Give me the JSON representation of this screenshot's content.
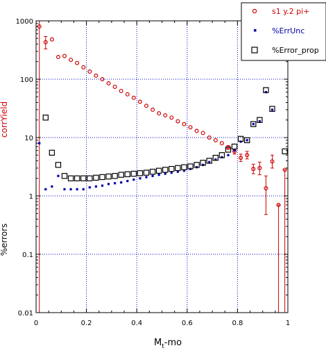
{
  "chart_data": {
    "type": "scatter",
    "xlabel": "M",
    "xlabel_sub": "t",
    "xlabel_suffix": "-mo",
    "ylabel_top": "corrYield",
    "ylabel_bottom": "%errors",
    "xlim": [
      0,
      1
    ],
    "ylim": [
      0.01,
      1000
    ],
    "yscale": "log",
    "grid": true,
    "legend_position": "top-right",
    "x_ticks": [
      {
        "value": 0,
        "label": "0"
      },
      {
        "value": 0.2,
        "label": "0.2"
      },
      {
        "value": 0.4,
        "label": "0.4"
      },
      {
        "value": 0.6,
        "label": "0.6"
      },
      {
        "value": 0.8,
        "label": "0.8"
      },
      {
        "value": 1,
        "label": "1"
      }
    ],
    "y_ticks": [
      {
        "value": 0.01,
        "label": "0.01"
      },
      {
        "value": 0.1,
        "label": "0.1"
      },
      {
        "value": 1,
        "label": "1"
      },
      {
        "value": 10,
        "label": "10"
      },
      {
        "value": 100,
        "label": "100"
      },
      {
        "value": 1000,
        "label": "1000"
      }
    ],
    "series": [
      {
        "name": "s1 y.2 pi+",
        "marker": "open-circle",
        "color": "#cc0000",
        "points": [
          {
            "x": 0.013,
            "y": 800,
            "lo": 0.01,
            "hi": 1000
          },
          {
            "x": 0.038,
            "y": 430,
            "lo": 330,
            "hi": 540
          },
          {
            "x": 0.063,
            "y": 480
          },
          {
            "x": 0.088,
            "y": 240
          },
          {
            "x": 0.113,
            "y": 250
          },
          {
            "x": 0.138,
            "y": 215
          },
          {
            "x": 0.163,
            "y": 190
          },
          {
            "x": 0.188,
            "y": 160
          },
          {
            "x": 0.213,
            "y": 135
          },
          {
            "x": 0.238,
            "y": 115
          },
          {
            "x": 0.263,
            "y": 100
          },
          {
            "x": 0.288,
            "y": 85
          },
          {
            "x": 0.313,
            "y": 74
          },
          {
            "x": 0.338,
            "y": 63
          },
          {
            "x": 0.363,
            "y": 55
          },
          {
            "x": 0.388,
            "y": 48
          },
          {
            "x": 0.413,
            "y": 41
          },
          {
            "x": 0.438,
            "y": 35
          },
          {
            "x": 0.463,
            "y": 30
          },
          {
            "x": 0.488,
            "y": 26
          },
          {
            "x": 0.513,
            "y": 24
          },
          {
            "x": 0.538,
            "y": 22
          },
          {
            "x": 0.563,
            "y": 19
          },
          {
            "x": 0.588,
            "y": 17
          },
          {
            "x": 0.613,
            "y": 15
          },
          {
            "x": 0.638,
            "y": 13
          },
          {
            "x": 0.663,
            "y": 12
          },
          {
            "x": 0.688,
            "y": 10
          },
          {
            "x": 0.713,
            "y": 9
          },
          {
            "x": 0.738,
            "y": 8
          },
          {
            "x": 0.763,
            "y": 6.8,
            "lo": 6.3,
            "hi": 7.3
          },
          {
            "x": 0.788,
            "y": 5.8,
            "lo": 5.2,
            "hi": 6.4
          },
          {
            "x": 0.813,
            "y": 4.5,
            "lo": 3.9,
            "hi": 5.2
          },
          {
            "x": 0.838,
            "y": 5.0,
            "lo": 4.3,
            "hi": 5.8
          },
          {
            "x": 0.863,
            "y": 2.9,
            "lo": 2.4,
            "hi": 3.5
          },
          {
            "x": 0.888,
            "y": 3.0,
            "lo": 2.3,
            "hi": 3.8
          },
          {
            "x": 0.913,
            "y": 1.35,
            "lo": 0.48,
            "hi": 2.2
          },
          {
            "x": 0.938,
            "y": 3.9,
            "lo": 3.0,
            "hi": 5.0
          },
          {
            "x": 0.963,
            "y": 0.7,
            "lo": 0.01,
            "hi": 0.7
          },
          {
            "x": 0.988,
            "y": 2.8,
            "lo": 0.01,
            "hi": 2.8
          }
        ]
      },
      {
        "name": "%ErrUnc",
        "marker": "filled-square",
        "color": "#0000aa",
        "points": [
          {
            "x": 0.013,
            "y": 8
          },
          {
            "x": 0.038,
            "y": 1.3
          },
          {
            "x": 0.063,
            "y": 1.45
          },
          {
            "x": 0.088,
            "y": 2.2
          },
          {
            "x": 0.113,
            "y": 1.3
          },
          {
            "x": 0.138,
            "y": 1.3
          },
          {
            "x": 0.163,
            "y": 1.3
          },
          {
            "x": 0.188,
            "y": 1.3
          },
          {
            "x": 0.213,
            "y": 1.4
          },
          {
            "x": 0.238,
            "y": 1.45
          },
          {
            "x": 0.263,
            "y": 1.5
          },
          {
            "x": 0.288,
            "y": 1.6
          },
          {
            "x": 0.313,
            "y": 1.65
          },
          {
            "x": 0.338,
            "y": 1.7
          },
          {
            "x": 0.363,
            "y": 1.8
          },
          {
            "x": 0.388,
            "y": 1.9
          },
          {
            "x": 0.413,
            "y": 2.0
          },
          {
            "x": 0.438,
            "y": 2.1
          },
          {
            "x": 0.463,
            "y": 2.2
          },
          {
            "x": 0.488,
            "y": 2.3
          },
          {
            "x": 0.513,
            "y": 2.4
          },
          {
            "x": 0.538,
            "y": 2.5
          },
          {
            "x": 0.563,
            "y": 2.6
          },
          {
            "x": 0.588,
            "y": 2.7
          },
          {
            "x": 0.613,
            "y": 2.9
          },
          {
            "x": 0.638,
            "y": 3.1
          },
          {
            "x": 0.663,
            "y": 3.4
          },
          {
            "x": 0.688,
            "y": 3.8
          },
          {
            "x": 0.713,
            "y": 4.2
          },
          {
            "x": 0.738,
            "y": 4.6
          },
          {
            "x": 0.763,
            "y": 5.0
          },
          {
            "x": 0.788,
            "y": 6.0
          },
          {
            "x": 0.813,
            "y": 8.5
          },
          {
            "x": 0.838,
            "y": 9.0
          },
          {
            "x": 0.863,
            "y": 17
          },
          {
            "x": 0.888,
            "y": 19
          },
          {
            "x": 0.913,
            "y": 60
          },
          {
            "x": 0.938,
            "y": 30
          }
        ]
      },
      {
        "name": "%Error_prop",
        "marker": "open-square",
        "color": "#000000",
        "points": [
          {
            "x": 0.038,
            "y": 22
          },
          {
            "x": 0.063,
            "y": 5.5
          },
          {
            "x": 0.088,
            "y": 3.4
          },
          {
            "x": 0.113,
            "y": 2.2
          },
          {
            "x": 0.138,
            "y": 2.0
          },
          {
            "x": 0.163,
            "y": 2.0
          },
          {
            "x": 0.188,
            "y": 2.0
          },
          {
            "x": 0.213,
            "y": 2.0
          },
          {
            "x": 0.238,
            "y": 2.05
          },
          {
            "x": 0.263,
            "y": 2.1
          },
          {
            "x": 0.288,
            "y": 2.15
          },
          {
            "x": 0.313,
            "y": 2.2
          },
          {
            "x": 0.338,
            "y": 2.3
          },
          {
            "x": 0.363,
            "y": 2.35
          },
          {
            "x": 0.388,
            "y": 2.4
          },
          {
            "x": 0.413,
            "y": 2.45
          },
          {
            "x": 0.438,
            "y": 2.5
          },
          {
            "x": 0.463,
            "y": 2.6
          },
          {
            "x": 0.488,
            "y": 2.7
          },
          {
            "x": 0.513,
            "y": 2.8
          },
          {
            "x": 0.538,
            "y": 2.9
          },
          {
            "x": 0.563,
            "y": 3.0
          },
          {
            "x": 0.588,
            "y": 3.1
          },
          {
            "x": 0.613,
            "y": 3.2
          },
          {
            "x": 0.638,
            "y": 3.4
          },
          {
            "x": 0.663,
            "y": 3.7
          },
          {
            "x": 0.688,
            "y": 4.0
          },
          {
            "x": 0.713,
            "y": 4.5
          },
          {
            "x": 0.738,
            "y": 5.0
          },
          {
            "x": 0.763,
            "y": 6.2
          },
          {
            "x": 0.788,
            "y": 7.0
          },
          {
            "x": 0.813,
            "y": 9.5
          },
          {
            "x": 0.838,
            "y": 9.0
          },
          {
            "x": 0.863,
            "y": 17
          },
          {
            "x": 0.888,
            "y": 20
          },
          {
            "x": 0.913,
            "y": 65
          },
          {
            "x": 0.938,
            "y": 31
          },
          {
            "x": 0.988,
            "y": 5.8
          }
        ]
      }
    ]
  }
}
